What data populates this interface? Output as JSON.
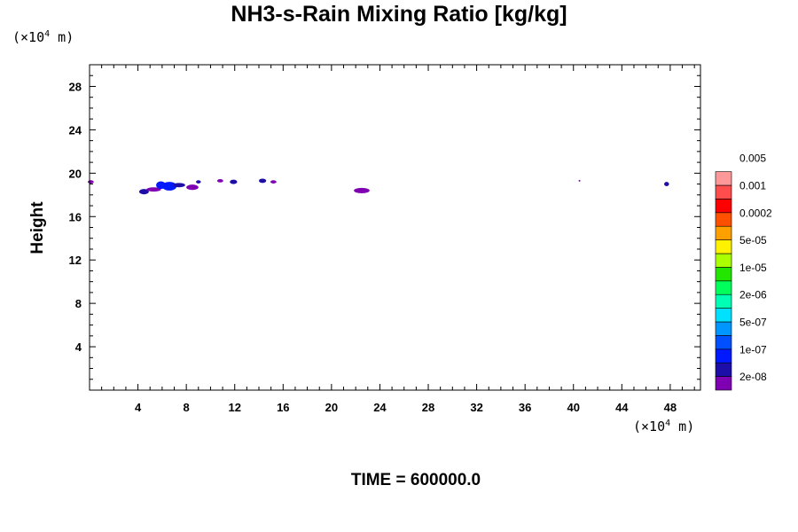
{
  "chart_data": {
    "type": "heatmap",
    "title": "NH3-s-Rain Mixing Ratio [kg/kg]",
    "ylabel": "Height",
    "xlabel": "",
    "x_unit": {
      "prefix": "(×10",
      "exp": "4",
      "suffix": " m)"
    },
    "y_unit": {
      "prefix": "(×10",
      "exp": "4",
      "suffix": " m)"
    },
    "xlim": [
      0,
      50.5
    ],
    "ylim": [
      0,
      30
    ],
    "x_ticks": [
      4,
      8,
      12,
      16,
      20,
      24,
      28,
      32,
      36,
      40,
      44,
      48
    ],
    "y_ticks": [
      4,
      8,
      12,
      16,
      20,
      24,
      28
    ],
    "colorbar": {
      "colors": [
        "#7f00b2",
        "#1c0ea7",
        "#0019ff",
        "#0050ff",
        "#0096ff",
        "#00e0ff",
        "#00ffb4",
        "#00ff5a",
        "#22e600",
        "#aaff00",
        "#fff200",
        "#ffa000",
        "#ff5000",
        "#ff0000",
        "#ff4c4c",
        "#ff9999"
      ],
      "labels": [
        "2e-08",
        "1e-07",
        "5e-07",
        "2e-06",
        "1e-05",
        "5e-05",
        "0.0002",
        "0.001",
        "0.005"
      ]
    },
    "features": [
      {
        "x": 0.1,
        "y": 19.2,
        "w": 0.5,
        "h": 0.3,
        "level": 0
      },
      {
        "x": 4.5,
        "y": 18.3,
        "w": 0.8,
        "h": 0.5,
        "level": 1
      },
      {
        "x": 5.3,
        "y": 18.5,
        "w": 1.2,
        "h": 0.4,
        "level": 0
      },
      {
        "x": 5.9,
        "y": 18.9,
        "w": 0.8,
        "h": 0.7,
        "level": 2
      },
      {
        "x": 6.6,
        "y": 18.8,
        "w": 1.2,
        "h": 0.8,
        "level": 2
      },
      {
        "x": 7.4,
        "y": 18.9,
        "w": 1.0,
        "h": 0.4,
        "level": 1
      },
      {
        "x": 8.5,
        "y": 18.7,
        "w": 1.0,
        "h": 0.5,
        "level": 0
      },
      {
        "x": 9.0,
        "y": 19.2,
        "w": 0.4,
        "h": 0.3,
        "level": 1
      },
      {
        "x": 10.8,
        "y": 19.3,
        "w": 0.5,
        "h": 0.3,
        "level": 0
      },
      {
        "x": 11.9,
        "y": 19.2,
        "w": 0.6,
        "h": 0.4,
        "level": 1
      },
      {
        "x": 14.3,
        "y": 19.3,
        "w": 0.6,
        "h": 0.4,
        "level": 1
      },
      {
        "x": 15.2,
        "y": 19.2,
        "w": 0.5,
        "h": 0.3,
        "level": 0
      },
      {
        "x": 22.5,
        "y": 18.4,
        "w": 1.3,
        "h": 0.5,
        "level": 0
      },
      {
        "x": 40.5,
        "y": 19.3,
        "w": 0.1,
        "h": 0.1,
        "level": 0
      },
      {
        "x": 47.7,
        "y": 19.0,
        "w": 0.4,
        "h": 0.4,
        "level": 1
      }
    ]
  },
  "time_label": "TIME = 600000.0"
}
